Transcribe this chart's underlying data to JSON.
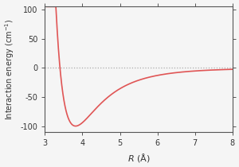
{
  "xlabel": "$R$ (Å)",
  "ylabel": "Interaction energy (cm$^{-1}$)",
  "xlim": [
    3.0,
    8.0
  ],
  "ylim": [
    -110,
    105
  ],
  "xticks": [
    3.0,
    4.0,
    5.0,
    6.0,
    7.0,
    8.0
  ],
  "yticks": [
    -100,
    -50,
    0,
    50,
    100
  ],
  "line_color": "#e05555",
  "zero_line_color": "#aaaaaa",
  "spine_color": "#555555",
  "tick_color": "#555555",
  "label_color": "#333333",
  "background_color": "#f5f5f5",
  "figure_background": "#f5f5f5",
  "lj_epsilon": 99.5,
  "lj_sigma": 3.401,
  "r_start": 3.05,
  "r_end": 8.0,
  "r_npoints": 3000
}
